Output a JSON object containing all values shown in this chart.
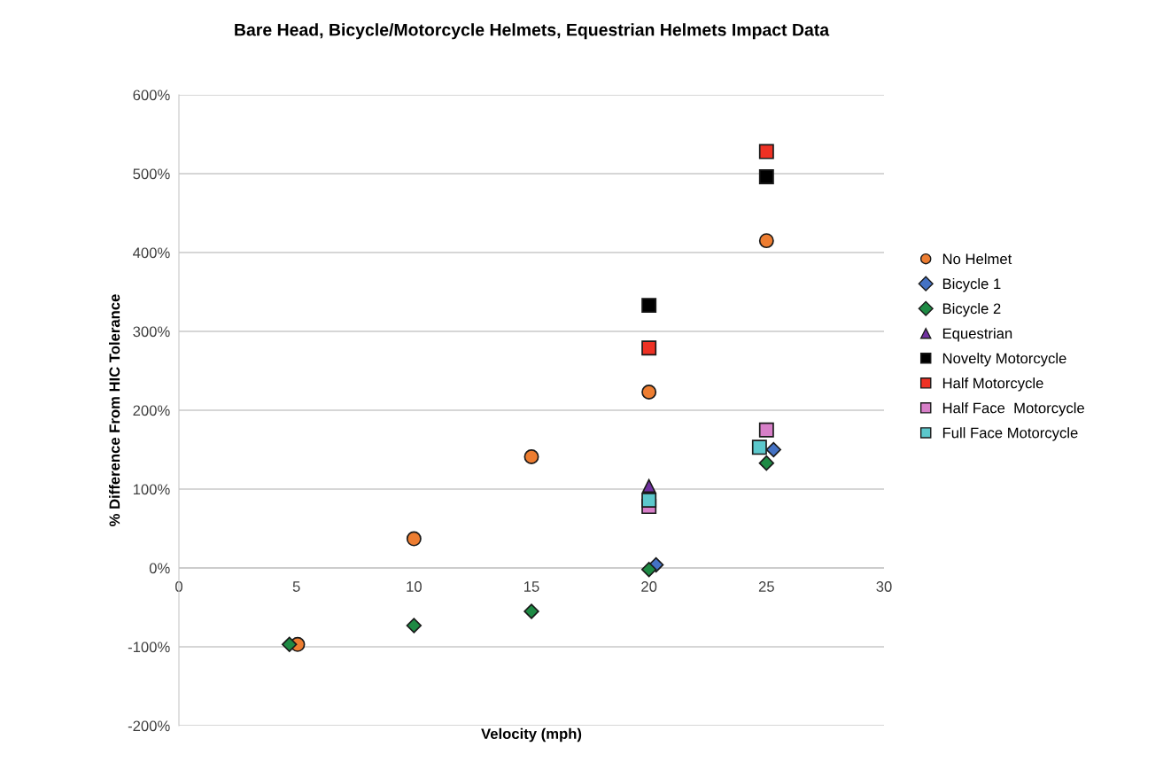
{
  "chart_data": {
    "type": "scatter",
    "title": "Bare Head, Bicycle/Motorcycle Helmets, Equestrian Helmets Impact Data",
    "xlabel": "Velocity (mph)",
    "ylabel": "% Difference From HIC Tolerance",
    "xlim": [
      0,
      30
    ],
    "xticks": [
      0,
      5,
      10,
      15,
      20,
      25,
      30
    ],
    "ylim": [
      -200,
      600
    ],
    "yticks": [
      {
        "value": -200,
        "label": "-200%"
      },
      {
        "value": -100,
        "label": "-100%"
      },
      {
        "value": 0,
        "label": "0%"
      },
      {
        "value": 100,
        "label": "100%"
      },
      {
        "value": 200,
        "label": "200%"
      },
      {
        "value": 300,
        "label": "300%"
      },
      {
        "value": 400,
        "label": "400%"
      },
      {
        "value": 500,
        "label": "500%"
      },
      {
        "value": 600,
        "label": "600%"
      }
    ],
    "grid": "y",
    "legend": "right",
    "series": [
      {
        "name": "No Helmet",
        "color": "#ed7d31",
        "marker": "circle",
        "x": [
          5.05,
          10,
          15,
          20,
          25
        ],
        "values": [
          -97,
          37,
          141,
          223,
          415
        ]
      },
      {
        "name": "Bicycle 1",
        "color": "#4472c4",
        "marker": "diamond",
        "x": [
          20.3,
          25.3
        ],
        "values": [
          4,
          150
        ]
      },
      {
        "name": "Bicycle 2",
        "color": "#1e8a44",
        "marker": "diamond",
        "x": [
          4.7,
          10,
          15,
          20,
          25
        ],
        "values": [
          -97,
          -73,
          -55,
          -2,
          133
        ]
      },
      {
        "name": "Equestrian",
        "color": "#7030a0",
        "marker": "triangle",
        "x": [
          20
        ],
        "values": [
          104
        ]
      },
      {
        "name": "Novelty Motorcycle",
        "color": "#000000",
        "marker": "square",
        "x": [
          20,
          25
        ],
        "values": [
          333,
          496
        ]
      },
      {
        "name": "Half Motorcycle",
        "color": "#ee3124",
        "marker": "square",
        "x": [
          20,
          25
        ],
        "values": [
          279,
          528
        ]
      },
      {
        "name": "Half Face  Motorcycle",
        "color": "#d77fc8",
        "marker": "square",
        "x": [
          20,
          25
        ],
        "values": [
          78,
          175
        ]
      },
      {
        "name": "Full Face Motorcycle",
        "color": "#5cc8cc",
        "marker": "square",
        "x": [
          20,
          24.7
        ],
        "values": [
          86,
          153
        ]
      }
    ]
  }
}
